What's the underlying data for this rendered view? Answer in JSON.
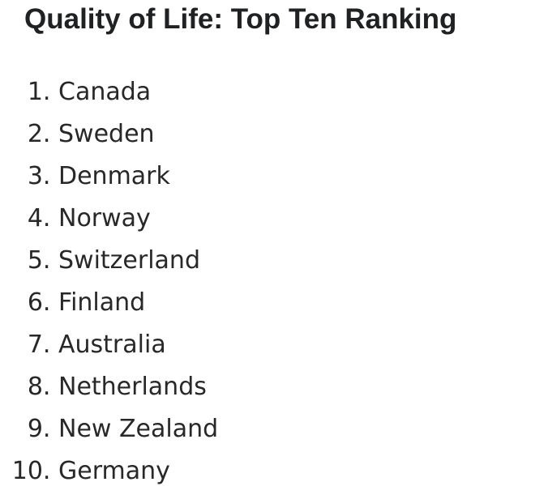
{
  "page": {
    "title": "Quality of Life: Top Ten Ranking"
  },
  "colors": {
    "background": "#ffffff",
    "title_text": "#202122",
    "list_text": "#282828"
  },
  "ranking": {
    "items": [
      {
        "rank": 1,
        "country": "Canada"
      },
      {
        "rank": 2,
        "country": "Sweden"
      },
      {
        "rank": 3,
        "country": "Denmark"
      },
      {
        "rank": 4,
        "country": "Norway"
      },
      {
        "rank": 5,
        "country": "Switzerland"
      },
      {
        "rank": 6,
        "country": "Finland"
      },
      {
        "rank": 7,
        "country": "Australia"
      },
      {
        "rank": 8,
        "country": "Netherlands"
      },
      {
        "rank": 9,
        "country": "New Zealand"
      },
      {
        "rank": 10,
        "country": "Germany"
      }
    ]
  }
}
